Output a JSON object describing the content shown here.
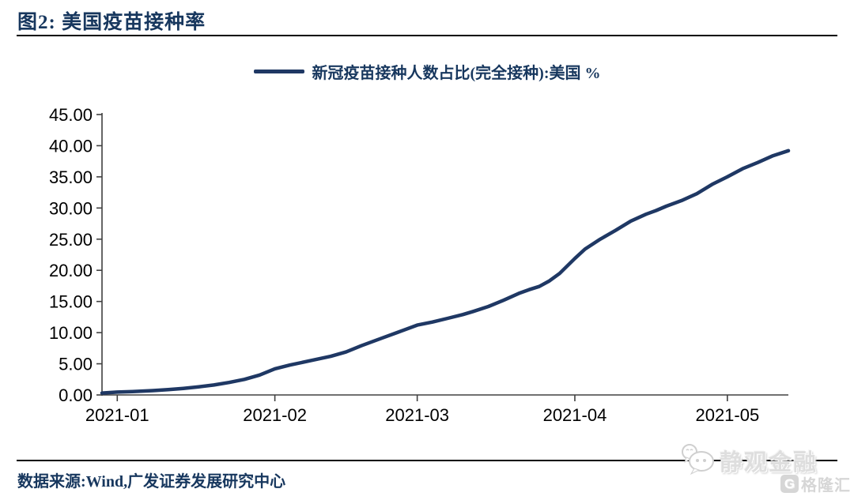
{
  "title": "图2:  美国疫苗接种率",
  "legend": {
    "label": "新冠疫苗接种人数占比(完全接种):美国 %"
  },
  "footer": {
    "source": "数据来源:Wind,广发证券发展研究中心"
  },
  "watermark": {
    "brand": "静观金融",
    "logo_letter": "G",
    "logo_text": "格隆汇"
  },
  "colors": {
    "line": "#1F3864",
    "title": "#17375E",
    "axis": "#404040",
    "tick_label": "#000000",
    "watermark_gray": "#D9D9D9"
  },
  "chart_data": {
    "type": "line",
    "title": "",
    "xlabel": "",
    "ylabel": "",
    "grid": false,
    "legend_position": "top-center",
    "ylim": [
      0,
      45
    ],
    "xlim_days": [
      0,
      135
    ],
    "y_ticks": [
      0,
      5,
      10,
      15,
      20,
      25,
      30,
      35,
      40,
      45
    ],
    "y_tick_labels": [
      "0.00",
      "5.00",
      "10.00",
      "15.00",
      "20.00",
      "25.00",
      "30.00",
      "35.00",
      "40.00",
      "45.00"
    ],
    "x_ticks": [
      {
        "day": 3,
        "label": "2021-01"
      },
      {
        "day": 34,
        "label": "2021-02"
      },
      {
        "day": 62,
        "label": "2021-03"
      },
      {
        "day": 93,
        "label": "2021-04"
      },
      {
        "day": 123,
        "label": "2021-05"
      }
    ],
    "series": [
      {
        "name": "新冠疫苗接种人数占比(完全接种):美国 %",
        "points": [
          [
            0,
            0.3
          ],
          [
            3,
            0.45
          ],
          [
            6,
            0.55
          ],
          [
            10,
            0.7
          ],
          [
            13,
            0.85
          ],
          [
            16,
            1.05
          ],
          [
            19,
            1.3
          ],
          [
            22,
            1.6
          ],
          [
            25,
            2.0
          ],
          [
            28,
            2.5
          ],
          [
            31,
            3.2
          ],
          [
            34,
            4.2
          ],
          [
            37,
            4.8
          ],
          [
            41,
            5.5
          ],
          [
            45,
            6.2
          ],
          [
            48,
            6.9
          ],
          [
            51,
            7.9
          ],
          [
            55,
            9.1
          ],
          [
            58,
            10.0
          ],
          [
            62,
            11.2
          ],
          [
            65,
            11.7
          ],
          [
            68,
            12.3
          ],
          [
            71,
            12.9
          ],
          [
            73,
            13.4
          ],
          [
            76,
            14.2
          ],
          [
            79,
            15.2
          ],
          [
            82,
            16.3
          ],
          [
            84,
            16.9
          ],
          [
            86,
            17.4
          ],
          [
            88,
            18.3
          ],
          [
            90,
            19.5
          ],
          [
            93,
            21.9
          ],
          [
            95,
            23.4
          ],
          [
            98,
            25.0
          ],
          [
            101,
            26.4
          ],
          [
            104,
            27.9
          ],
          [
            107,
            29.0
          ],
          [
            109,
            29.6
          ],
          [
            111,
            30.3
          ],
          [
            114,
            31.2
          ],
          [
            117,
            32.3
          ],
          [
            120,
            33.8
          ],
          [
            123,
            35.0
          ],
          [
            126,
            36.3
          ],
          [
            129,
            37.3
          ],
          [
            132,
            38.4
          ],
          [
            135,
            39.2
          ]
        ]
      }
    ]
  }
}
